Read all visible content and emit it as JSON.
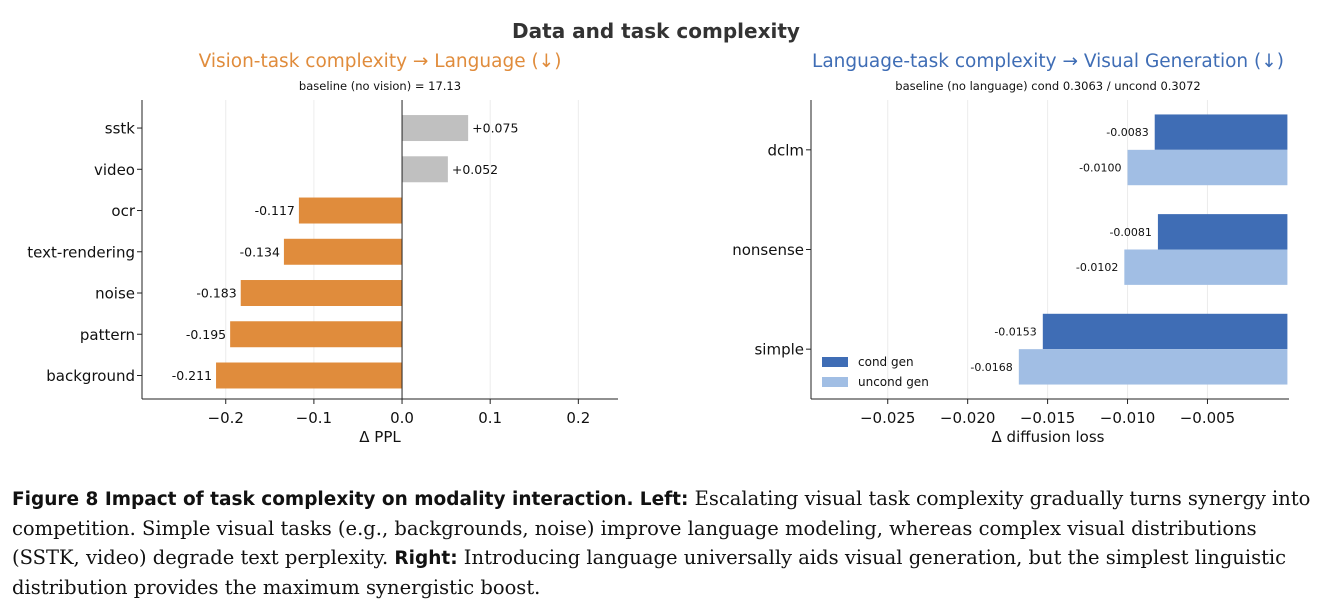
{
  "suptitle": "Data and task complexity",
  "charts": [
    {
      "title": "Vision-task complexity  →  Language (↓)",
      "subtitle": "baseline (no vision) = 17.13",
      "xlabel": "Δ PPL",
      "xticks": [
        "−0.2",
        "−0.1",
        "0.0",
        "0.1",
        "0.2"
      ],
      "legend": [],
      "title_color": "#E08C3C"
    },
    {
      "title": "Language-task complexity  →  Visual Generation (↓)",
      "subtitle": "baseline (no language)  cond 0.3063 / uncond 0.3072",
      "xlabel": "Δ diffusion loss",
      "xticks": [
        "−0.025",
        "−0.020",
        "−0.015",
        "−0.010",
        "−0.005"
      ],
      "legend": [
        "cond gen",
        "uncond gen"
      ],
      "title_color": "#3F6DB5"
    }
  ],
  "chart_data": [
    {
      "type": "bar",
      "orientation": "horizontal",
      "title": "Vision-task complexity  →  Language (↓)",
      "subtitle": "baseline (no vision) = 17.13",
      "xlabel": "Δ PPL",
      "xlim": [
        -0.295,
        0.245
      ],
      "xtick_values": [
        -0.2,
        -0.1,
        0.0,
        0.1,
        0.2
      ],
      "categories": [
        "sstk",
        "video",
        "ocr",
        "text-rendering",
        "noise",
        "pattern",
        "background"
      ],
      "values": [
        0.075,
        0.052,
        -0.117,
        -0.134,
        -0.183,
        -0.195,
        -0.211
      ],
      "value_labels": [
        "+0.075",
        "+0.052",
        "-0.117",
        "-0.134",
        "-0.183",
        "-0.195",
        "-0.211"
      ],
      "colors": {
        "positive": "#C0C0C0",
        "negative": "#E08C3C"
      },
      "grid": "vertical"
    },
    {
      "type": "bar",
      "orientation": "horizontal",
      "title": "Language-task complexity  →  Visual Generation (↓)",
      "subtitle": "baseline (no language)  cond 0.3063 / uncond 0.3072",
      "xlabel": "Δ diffusion loss",
      "xlim": [
        -0.0298,
        0.0001
      ],
      "xtick_values": [
        -0.025,
        -0.02,
        -0.015,
        -0.01,
        -0.005
      ],
      "categories": [
        "dclm",
        "nonsense",
        "simple"
      ],
      "series": [
        {
          "name": "cond gen",
          "color": "#3F6DB5",
          "values": [
            -0.0083,
            -0.0081,
            -0.0153
          ],
          "value_labels": [
            "-0.0083",
            "-0.0081",
            "-0.0153"
          ]
        },
        {
          "name": "uncond gen",
          "color": "#A1BEE4",
          "values": [
            -0.01,
            -0.0102,
            -0.0168
          ],
          "value_labels": [
            "-0.0100",
            "-0.0102",
            "-0.0168"
          ]
        }
      ],
      "legend_position": "lower-left",
      "grid": "vertical"
    }
  ],
  "caption": {
    "label": "Figure 8  Impact of task complexity on modality interaction.",
    "left_label": "Left:",
    "left_text": " Escalating visual task complexity gradually turns synergy into competition. Simple visual tasks (e.g., backgrounds, noise) improve language modeling, whereas complex visual distributions (SSTK, video) degrade text perplexity. ",
    "right_label": "Right:",
    "right_text": " Introducing language universally aids visual generation, but the simplest linguistic distribution provides the maximum synergistic boost."
  }
}
